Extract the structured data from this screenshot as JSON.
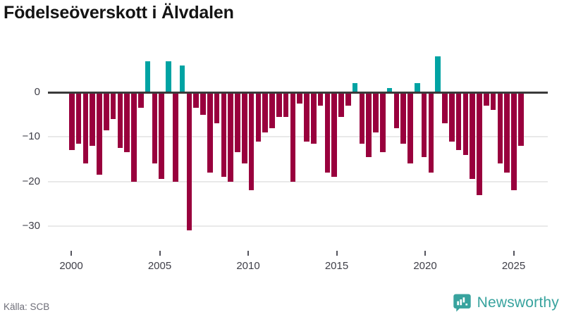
{
  "title": "Födelseöverskott i Älvdalen",
  "source": "Källa: SCB",
  "branding": {
    "name": "Newsworthy",
    "color": "#38a39e"
  },
  "colors": {
    "negative_bar": "#99003d",
    "positive_bar": "#00a3a3",
    "zero_line": "#3a3a3a",
    "gridline": "#e9e9e9",
    "axis_text": "#3f3f48",
    "title_text": "#141414",
    "source_text": "#6e6e78"
  },
  "chart_data": {
    "type": "bar",
    "title": "Födelseöverskott i Älvdalen",
    "x_start": 2000,
    "x_end": 2025.7,
    "x_ticks": [
      2000,
      2005,
      2010,
      2015,
      2020,
      2025
    ],
    "y_ticks": [
      0,
      -10,
      -20,
      -30
    ],
    "ylim": [
      -33,
      9
    ],
    "grid": true,
    "legend": "none",
    "series_note": "birth surplus per period; positive values teal, negative maroon",
    "values": [
      -13,
      -11.5,
      -16,
      -12,
      -18.5,
      -8.5,
      -6,
      -12.5,
      -13.5,
      -20,
      -3.5,
      7,
      -16,
      -19.5,
      7,
      -20,
      6,
      -31,
      -3.5,
      -5,
      -18,
      -7,
      -19,
      -20,
      -13.5,
      -16,
      -22,
      -11,
      -9,
      -8,
      -5.5,
      -5.5,
      -20,
      -2.5,
      -11,
      -11.5,
      -3,
      -18,
      -19,
      -5.5,
      -3,
      2,
      -11.5,
      -14.5,
      -9,
      -13.5,
      1,
      -8,
      -11.5,
      -16,
      2,
      -14.5,
      -18,
      8,
      -7,
      -11,
      -13,
      -14,
      -19.5,
      -23,
      -3,
      -4,
      -16,
      -18,
      -22,
      -12
    ]
  }
}
